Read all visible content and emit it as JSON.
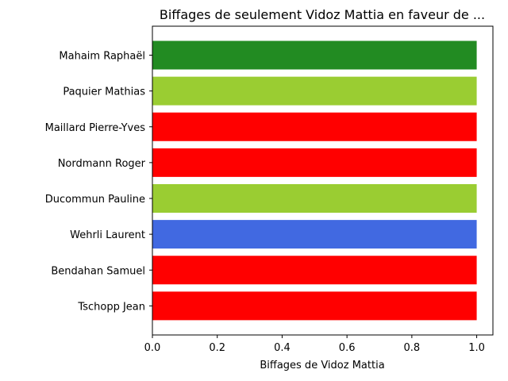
{
  "chart_data": {
    "type": "bar",
    "orientation": "horizontal",
    "title": "Biffages de seulement Vidoz Mattia en faveur de ...",
    "xlabel": "Biffages de Vidoz Mattia",
    "ylabel": "",
    "xlim": [
      0,
      1.05
    ],
    "x_ticks": [
      "0.0",
      "0.2",
      "0.4",
      "0.6",
      "0.8",
      "1.0"
    ],
    "grid": false,
    "categories": [
      "Mahaim Raphaël",
      "Paquier Mathias",
      "Maillard Pierre-Yves",
      "Nordmann Roger",
      "Ducommun Pauline",
      "Wehrli Laurent",
      "Bendahan Samuel",
      "Tschopp Jean"
    ],
    "values": [
      1,
      1,
      1,
      1,
      1,
      1,
      1,
      1
    ],
    "colors": [
      "#228b22",
      "#9acd32",
      "#ff0000",
      "#ff0000",
      "#9acd32",
      "#4169e1",
      "#ff0000",
      "#ff0000"
    ]
  }
}
